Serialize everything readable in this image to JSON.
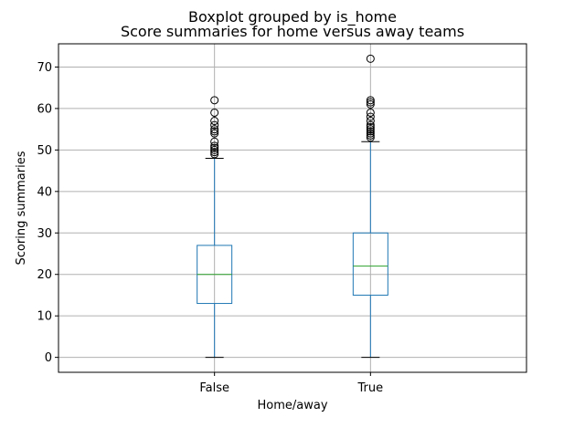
{
  "chart_data": {
    "type": "boxplot",
    "suptitle": "Boxplot grouped by is_home",
    "title": "Score summaries for home versus away teams",
    "xlabel": "Home/away",
    "ylabel": "Scoring summaries",
    "categories": [
      "False",
      "True"
    ],
    "ylim": [
      -3.6,
      75.6
    ],
    "yticks": [
      0,
      10,
      20,
      30,
      40,
      50,
      60,
      70
    ],
    "grid": true,
    "colors": {
      "box": "#1f77b4",
      "median": "#2ca02c",
      "grid": "#b0b0b0",
      "caps": "#000000",
      "fliers": "#000000"
    },
    "boxes": [
      {
        "category": "False",
        "whisker_low": 0,
        "q1": 13,
        "median": 20,
        "q3": 27,
        "whisker_high": 48,
        "outliers": [
          49,
          49.5,
          50,
          50.5,
          51,
          52,
          54,
          54.5,
          55,
          56,
          57,
          59,
          62
        ]
      },
      {
        "category": "True",
        "whisker_low": 0,
        "q1": 15,
        "median": 22,
        "q3": 30,
        "whisker_high": 52,
        "outliers": [
          53,
          53.5,
          54,
          54.5,
          55,
          55.5,
          56,
          57,
          58,
          59,
          61,
          61.5,
          62,
          72
        ]
      }
    ]
  }
}
